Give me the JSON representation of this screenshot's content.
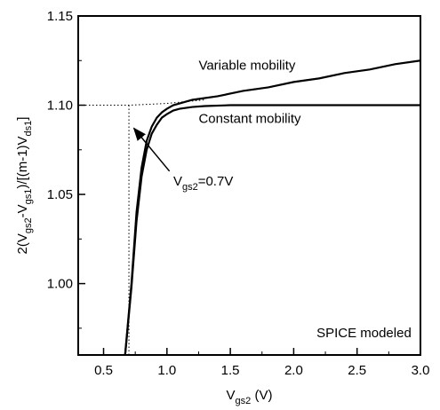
{
  "chart_data": {
    "type": "line",
    "xlabel": {
      "main": "V",
      "sub": "gs2",
      "rest": " (V)"
    },
    "ylabel": "2(V_gs2-V_gs1)/[(m-1)V_ds1]",
    "ylabel_parts": [
      {
        "t": "2(V",
        "sub": false
      },
      {
        "t": "gs2",
        "sub": true
      },
      {
        "t": "-V",
        "sub": false
      },
      {
        "t": "gs1",
        "sub": true
      },
      {
        "t": ")/[(m-1)V",
        "sub": false
      },
      {
        "t": "ds1",
        "sub": true
      },
      {
        "t": "]",
        "sub": false
      }
    ],
    "xlim": [
      0.3,
      3.0
    ],
    "ylim": [
      0.96,
      1.15
    ],
    "xticks": [
      0.5,
      1.0,
      1.5,
      2.0,
      2.5,
      3.0
    ],
    "xtick_labels": [
      "0.5",
      "1.0",
      "1.5",
      "2.0",
      "2.5",
      "3.0"
    ],
    "yticks": [
      1.0,
      1.05,
      1.1,
      1.15
    ],
    "ytick_labels": [
      "1.00",
      "1.05",
      "1.10",
      "1.15"
    ],
    "grid": false,
    "series": [
      {
        "name": "Variable mobility",
        "style": "solid",
        "x": [
          0.67,
          0.72,
          0.76,
          0.8,
          0.84,
          0.88,
          0.92,
          0.96,
          1.0,
          1.05,
          1.1,
          1.2,
          1.4,
          1.6,
          1.8,
          2.0,
          2.2,
          2.4,
          2.6,
          2.8,
          3.0
        ],
        "y": [
          0.96,
          1.0,
          1.04,
          1.065,
          1.08,
          1.088,
          1.093,
          1.096,
          1.098,
          1.1,
          1.101,
          1.103,
          1.105,
          1.108,
          1.11,
          1.113,
          1.115,
          1.118,
          1.12,
          1.123,
          1.125
        ]
      },
      {
        "name": "Constant mobility",
        "style": "solid",
        "x": [
          0.67,
          0.72,
          0.76,
          0.8,
          0.84,
          0.88,
          0.92,
          0.96,
          1.0,
          1.05,
          1.1,
          1.2,
          1.3,
          1.5,
          2.0,
          2.5,
          3.0
        ],
        "y": [
          0.96,
          0.998,
          1.035,
          1.06,
          1.075,
          1.084,
          1.089,
          1.093,
          1.095,
          1.097,
          1.098,
          1.099,
          1.0995,
          1.1,
          1.1,
          1.1,
          1.1
        ]
      },
      {
        "name": "",
        "style": "dotted",
        "x": [
          0.3,
          0.7,
          1.0,
          1.3
        ],
        "y": [
          1.1,
          1.1,
          1.101,
          1.103
        ]
      },
      {
        "name": "",
        "style": "dotted",
        "x": [
          0.7,
          0.7
        ],
        "y": [
          0.96,
          1.1
        ]
      }
    ],
    "annotations": [
      {
        "name": "variable-mobility-label",
        "text": "Variable mobility",
        "x": 1.25,
        "y": 1.12
      },
      {
        "name": "constant-mobility-label",
        "text": "Constant mobility",
        "x": 1.25,
        "y": 1.09
      },
      {
        "name": "spice-modeled-label",
        "text": "SPICE modeled",
        "x": 2.18,
        "y": 0.97
      }
    ],
    "arrow_annotation": {
      "main": "V",
      "sub": "gs2",
      "rest": "=0.7V",
      "text_x": 1.05,
      "text_y": 1.055,
      "arrow_from_x": 1.02,
      "arrow_from_y": 1.063,
      "arrow_to_x": 0.74,
      "arrow_to_y": 1.087
    }
  }
}
